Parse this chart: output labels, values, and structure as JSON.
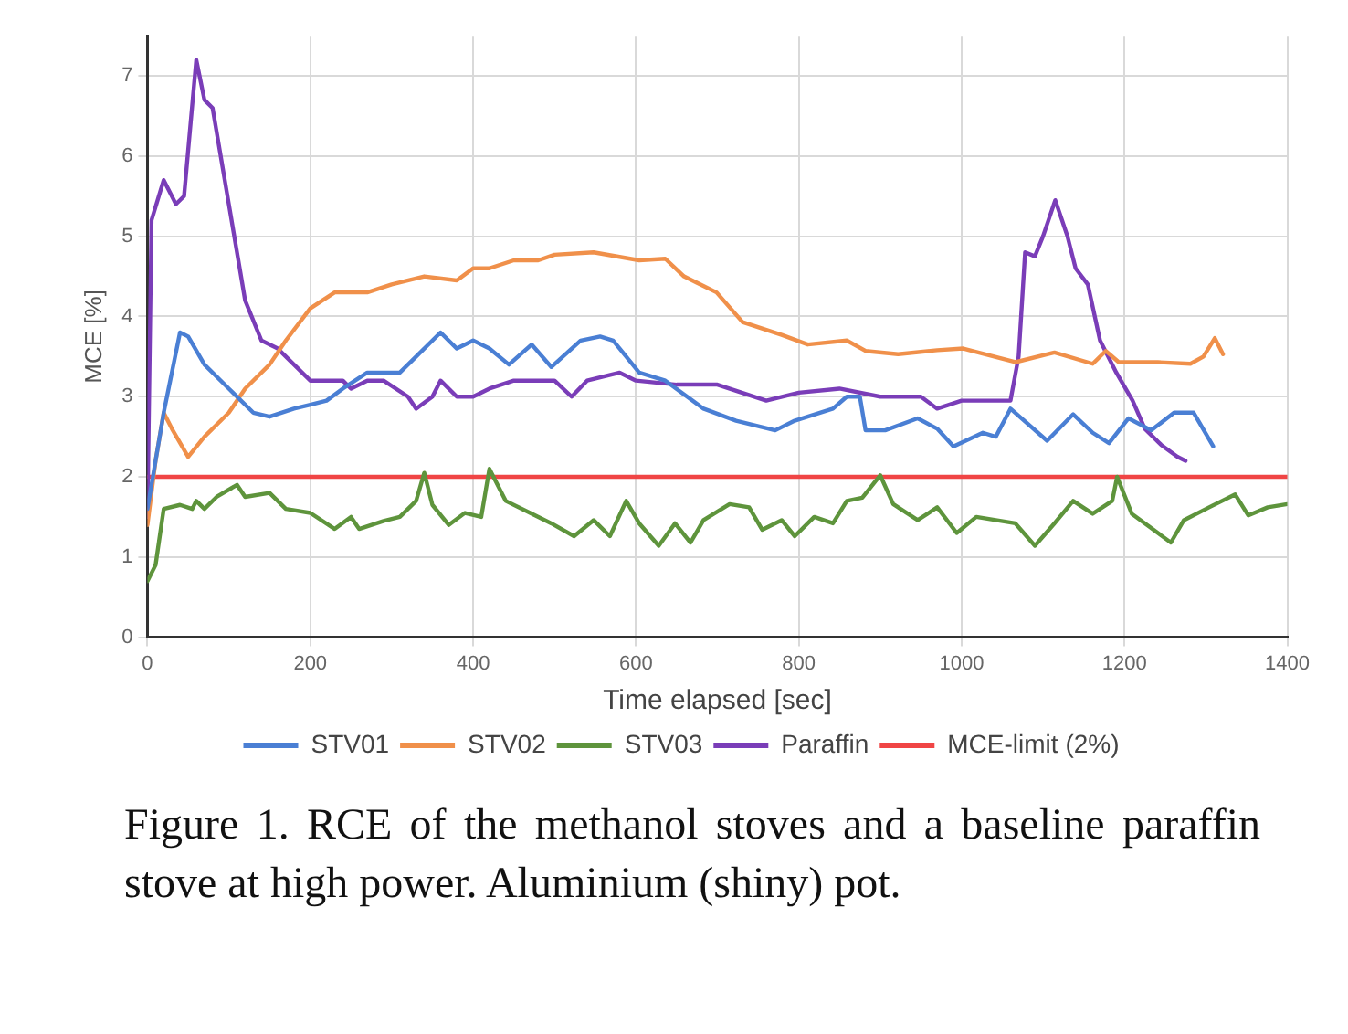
{
  "chart_data": {
    "type": "line",
    "xlabel": "Time elapsed [sec]",
    "ylabel": "MCE [%]",
    "annotations": [
      "Figure 1. RCE of the methanol stoves and a baseline paraffin stove at high power. Aluminium (shiny) pot."
    ],
    "xlim": [
      0,
      1400
    ],
    "xticks": [
      0,
      200,
      400,
      600,
      800,
      1000,
      1200,
      1400
    ],
    "ylim": [
      0,
      7.5
    ],
    "yticks": [
      0,
      1,
      2,
      3,
      4,
      5,
      6,
      7
    ],
    "grid": true,
    "legend": "bottom",
    "marker": "none",
    "line_style": "solid",
    "series": [
      {
        "name": "STV01",
        "color": "#4a7fd4",
        "x": [
          0,
          20,
          40,
          50,
          70,
          100,
          130,
          150,
          180,
          200,
          220,
          240,
          270,
          290,
          310,
          330,
          360,
          380,
          400,
          420,
          444,
          472,
          496,
          532,
          556,
          572,
          604,
          636,
          683,
          723,
          771,
          795,
          842,
          859,
          875,
          882,
          906,
          946,
          970,
          990,
          1026,
          1042,
          1060,
          1105,
          1137,
          1161,
          1181,
          1205,
          1233,
          1261,
          1285,
          1309
        ],
        "values": [
          1.6,
          2.8,
          3.8,
          3.75,
          3.4,
          3.1,
          2.8,
          2.75,
          2.85,
          2.9,
          2.95,
          3.1,
          3.3,
          3.3,
          3.3,
          3.5,
          3.8,
          3.6,
          3.7,
          3.6,
          3.4,
          3.65,
          3.37,
          3.7,
          3.75,
          3.7,
          3.3,
          3.2,
          2.85,
          2.7,
          2.58,
          2.7,
          2.85,
          3.0,
          3.0,
          2.58,
          2.58,
          2.73,
          2.6,
          2.38,
          2.55,
          2.5,
          2.85,
          2.45,
          2.78,
          2.55,
          2.42,
          2.73,
          2.58,
          2.8,
          2.8,
          2.38
        ]
      },
      {
        "name": "STV02",
        "color": "#f0904a",
        "x": [
          0,
          10,
          20,
          30,
          50,
          70,
          100,
          120,
          150,
          170,
          200,
          230,
          270,
          300,
          340,
          380,
          400,
          420,
          450,
          480,
          500,
          548,
          604,
          636,
          659,
          699,
          731,
          779,
          811,
          859,
          882,
          922,
          970,
          1002,
          1066,
          1114,
          1161,
          1177,
          1193,
          1241,
          1281,
          1297,
          1311,
          1321
        ],
        "values": [
          1.4,
          2.2,
          2.8,
          2.6,
          2.25,
          2.5,
          2.8,
          3.1,
          3.4,
          3.7,
          4.1,
          4.3,
          4.3,
          4.4,
          4.5,
          4.45,
          4.6,
          4.6,
          4.7,
          4.7,
          4.77,
          4.8,
          4.7,
          4.72,
          4.5,
          4.3,
          3.93,
          3.77,
          3.65,
          3.7,
          3.57,
          3.53,
          3.58,
          3.6,
          3.43,
          3.55,
          3.41,
          3.57,
          3.43,
          3.43,
          3.41,
          3.5,
          3.73,
          3.53
        ]
      },
      {
        "name": "STV03",
        "color": "#5e943c",
        "x": [
          0,
          10,
          20,
          40,
          55,
          60,
          70,
          85,
          110,
          120,
          150,
          170,
          200,
          230,
          250,
          260,
          290,
          310,
          330,
          340,
          350,
          370,
          390,
          410,
          420,
          440,
          470,
          496,
          524,
          548,
          568,
          588,
          604,
          628,
          648,
          667,
          683,
          715,
          739,
          755,
          779,
          795,
          819,
          842,
          859,
          878,
          900,
          916,
          946,
          970,
          994,
          1018,
          1066,
          1090,
          1114,
          1137,
          1161,
          1185,
          1191,
          1209,
          1257,
          1273,
          1304,
          1336,
          1352,
          1376,
          1400
        ],
        "values": [
          0.7,
          0.9,
          1.6,
          1.65,
          1.6,
          1.7,
          1.6,
          1.75,
          1.9,
          1.75,
          1.8,
          1.6,
          1.55,
          1.35,
          1.5,
          1.35,
          1.45,
          1.5,
          1.7,
          2.05,
          1.65,
          1.4,
          1.55,
          1.5,
          2.1,
          1.7,
          1.55,
          1.42,
          1.26,
          1.46,
          1.26,
          1.7,
          1.42,
          1.14,
          1.42,
          1.18,
          1.46,
          1.66,
          1.62,
          1.34,
          1.46,
          1.26,
          1.5,
          1.42,
          1.7,
          1.74,
          2.02,
          1.66,
          1.46,
          1.62,
          1.3,
          1.5,
          1.42,
          1.14,
          1.42,
          1.7,
          1.54,
          1.7,
          2.0,
          1.54,
          1.18,
          1.46,
          1.62,
          1.78,
          1.52,
          1.62,
          1.66
        ]
      },
      {
        "name": "Paraffin",
        "color": "#7a3db8",
        "x": [
          0,
          5,
          20,
          35,
          45,
          60,
          70,
          80,
          100,
          120,
          140,
          160,
          180,
          200,
          220,
          240,
          250,
          270,
          290,
          320,
          330,
          350,
          360,
          380,
          400,
          420,
          450,
          490,
          500,
          521,
          540,
          580,
          600,
          650,
          700,
          760,
          800,
          850,
          900,
          950,
          970,
          1000,
          1060,
          1070,
          1078,
          1090,
          1100,
          1115,
          1130,
          1140,
          1155,
          1170,
          1190,
          1210,
          1225,
          1245,
          1265,
          1275
        ],
        "values": [
          1.5,
          5.2,
          5.7,
          5.4,
          5.5,
          7.2,
          6.7,
          6.6,
          5.4,
          4.2,
          3.7,
          3.6,
          3.4,
          3.2,
          3.2,
          3.2,
          3.1,
          3.2,
          3.2,
          3.0,
          2.85,
          3.0,
          3.2,
          3.0,
          3.0,
          3.1,
          3.2,
          3.2,
          3.2,
          3.0,
          3.2,
          3.3,
          3.2,
          3.15,
          3.15,
          2.95,
          3.05,
          3.1,
          3.0,
          3.0,
          2.85,
          2.95,
          2.95,
          3.5,
          4.8,
          4.75,
          5.0,
          5.45,
          5.0,
          4.6,
          4.4,
          3.7,
          3.3,
          2.95,
          2.6,
          2.4,
          2.25,
          2.2
        ]
      },
      {
        "name": "MCE-limit (2%)",
        "color": "#f04545",
        "x": [
          0,
          1400
        ],
        "values": [
          2,
          2
        ]
      }
    ]
  }
}
